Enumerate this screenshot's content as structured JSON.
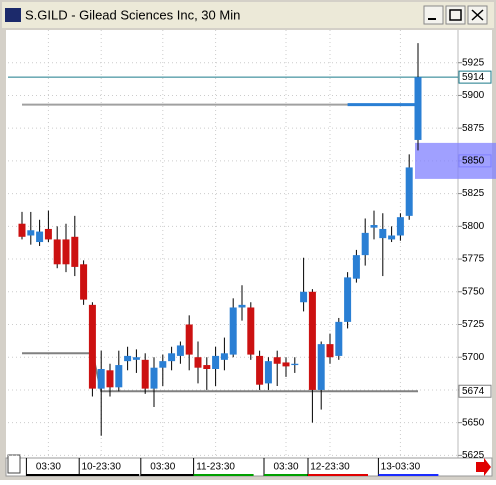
{
  "chart_data": {
    "type": "candlestick",
    "title": "S.GILD - Gilead Sciences Inc, 30 Min",
    "categories": [
      null,
      null,
      null,
      "03:30",
      null,
      null,
      null,
      null,
      null,
      "10-23:30",
      null,
      null,
      null,
      null,
      null,
      null,
      "03:30",
      null,
      null,
      null,
      null,
      null,
      "11-23:30",
      null,
      null,
      null,
      null,
      null,
      null,
      null,
      "03:30",
      null,
      null,
      null,
      null,
      "12-23:30",
      null,
      null,
      null,
      null,
      null,
      null,
      null,
      "13-03:30",
      null,
      null
    ],
    "open": [
      5802,
      5793,
      5788,
      5798,
      5790,
      5790,
      5792,
      5771,
      5740,
      5676,
      5690,
      5677,
      5697,
      5698,
      5698,
      5676,
      5692,
      5697,
      5701,
      5725,
      5700,
      5694,
      5691,
      5698,
      5702,
      5738,
      5738,
      5701,
      5680,
      5700,
      5696,
      5694,
      5742,
      5750,
      5675,
      5710,
      5701,
      5727,
      5760,
      5778,
      5799,
      5791,
      5790,
      5793,
      5808,
      5866
    ],
    "high": [
      5811,
      5811,
      5805,
      5812,
      5800,
      5802,
      5808,
      5774,
      5742,
      5705,
      5695,
      5705,
      5708,
      5706,
      5703,
      5700,
      5702,
      5708,
      5712,
      5732,
      5712,
      5700,
      5708,
      5715,
      5745,
      5755,
      5742,
      5705,
      5700,
      5705,
      5700,
      5700,
      5776,
      5752,
      5712,
      5718,
      5730,
      5765,
      5782,
      5806,
      5812,
      5810,
      5800,
      5810,
      5855,
      5940
    ],
    "low": [
      5790,
      5786,
      5785,
      5788,
      5768,
      5765,
      5762,
      5740,
      5670,
      5640,
      5670,
      5674,
      5690,
      5688,
      5672,
      5662,
      5678,
      5690,
      5695,
      5690,
      5680,
      5675,
      5678,
      5690,
      5700,
      5728,
      5698,
      5675,
      5675,
      5678,
      5685,
      5688,
      5735,
      5650,
      5660,
      5695,
      5698,
      5722,
      5757,
      5770,
      5790,
      5762,
      5788,
      5789,
      5805,
      5858
    ],
    "close": [
      5792,
      5797,
      5796,
      5790,
      5771,
      5771,
      5769,
      5744,
      5676,
      5691,
      5677,
      5694,
      5701,
      5700,
      5676,
      5692,
      5697,
      5703,
      5709,
      5702,
      5692,
      5691,
      5701,
      5703,
      5738,
      5740,
      5702,
      5679,
      5697,
      5695,
      5693,
      5695,
      5750,
      5675,
      5710,
      5700,
      5727,
      5761,
      5778,
      5795,
      5801,
      5798,
      5793,
      5807,
      5845,
      5914
    ],
    "up_color": "#2a7fd4",
    "down_color": "#cc1111",
    "lines": [
      {
        "color": "#a0a0a0",
        "values": [
          5893,
          5893,
          5893,
          5893,
          5893,
          5893,
          5893,
          5893,
          5893,
          5893,
          5893,
          5893,
          5893,
          5893,
          5893,
          5893,
          5893,
          5893,
          5893,
          5893,
          5893,
          5893,
          5893,
          5893,
          5893,
          5893,
          5893,
          5893,
          5893,
          5893,
          5893,
          5893,
          5893,
          5893,
          5893,
          5893,
          5893,
          5893,
          5893,
          5893,
          5893,
          5893,
          5893,
          5893,
          5893,
          5893
        ]
      },
      {
        "color": "#2a7fd4",
        "values": [
          null,
          null,
          null,
          null,
          null,
          null,
          null,
          null,
          null,
          null,
          null,
          null,
          null,
          null,
          null,
          null,
          null,
          null,
          null,
          null,
          null,
          null,
          null,
          null,
          null,
          null,
          null,
          null,
          null,
          null,
          null,
          null,
          null,
          null,
          null,
          null,
          null,
          5893,
          5893,
          5893,
          5893,
          5893,
          5893,
          5893,
          5893,
          5893
        ]
      },
      {
        "color": "#808080",
        "values": [
          5703,
          5703,
          5703,
          5703,
          5703,
          5703,
          5703,
          5703,
          5703,
          5674,
          5674,
          5674,
          5674,
          5674,
          5674,
          5674,
          5674,
          5674,
          5674,
          5674,
          5674,
          5674,
          5674,
          5674,
          5674,
          5674,
          5674,
          5674,
          5674,
          5674,
          5674,
          5674,
          5674,
          5674,
          5674,
          5674,
          5674,
          5674,
          5674,
          5674,
          5674,
          5674,
          5674,
          5674,
          5674,
          5674
        ]
      }
    ],
    "markers": [
      {
        "value": 5914,
        "color": "#1a7a8a"
      },
      {
        "value": 5850,
        "color": "#8080ff"
      },
      {
        "value": 5674,
        "color": "#808080"
      }
    ],
    "ylim": [
      5623,
      5950
    ],
    "yticks": [
      5625,
      5650,
      5675,
      5700,
      5725,
      5750,
      5775,
      5800,
      5825,
      5850,
      5875,
      5900,
      5925
    ],
    "grid": true
  }
}
